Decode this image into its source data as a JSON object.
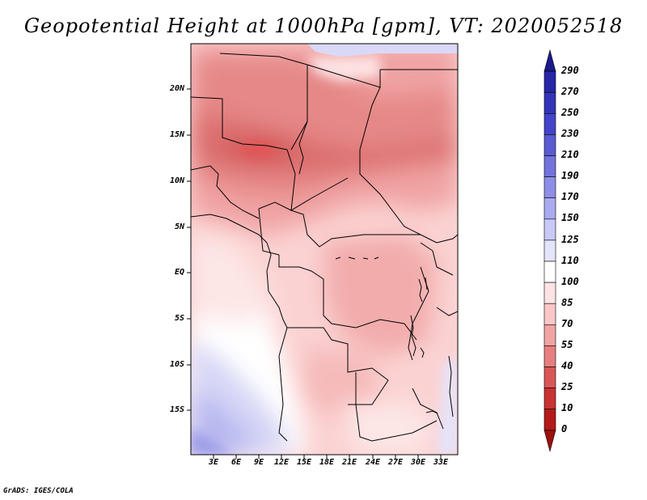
{
  "title": "Geopotential Height at 1000hPa [gpm], VT: 2020052518",
  "footer": "GrADS: IGES/COLA",
  "map": {
    "lat_labels": [
      "20N",
      "15N",
      "10N",
      "5N",
      "EQ",
      "5S",
      "10S",
      "15S"
    ],
    "lon_labels": [
      "3E",
      "6E",
      "9E",
      "12E",
      "15E",
      "18E",
      "21E",
      "24E",
      "27E",
      "30E",
      "33E"
    ]
  },
  "colorbar": {
    "levels": [
      "290",
      "270",
      "250",
      "230",
      "210",
      "190",
      "170",
      "150",
      "125",
      "110",
      "100",
      "85",
      "70",
      "55",
      "40",
      "25",
      "10",
      "0"
    ],
    "colors": [
      "#1a1a8c",
      "#2626a6",
      "#3434b8",
      "#4444c8",
      "#5a5ad2",
      "#7373dc",
      "#8e8ee6",
      "#aaaaf0",
      "#c9c9f7",
      "#e4e4fb",
      "#ffffff",
      "#fde3e3",
      "#fac7c7",
      "#f1a4a4",
      "#e67f7f",
      "#d95757",
      "#c83333",
      "#b31a1a",
      "#9c1010"
    ]
  }
}
